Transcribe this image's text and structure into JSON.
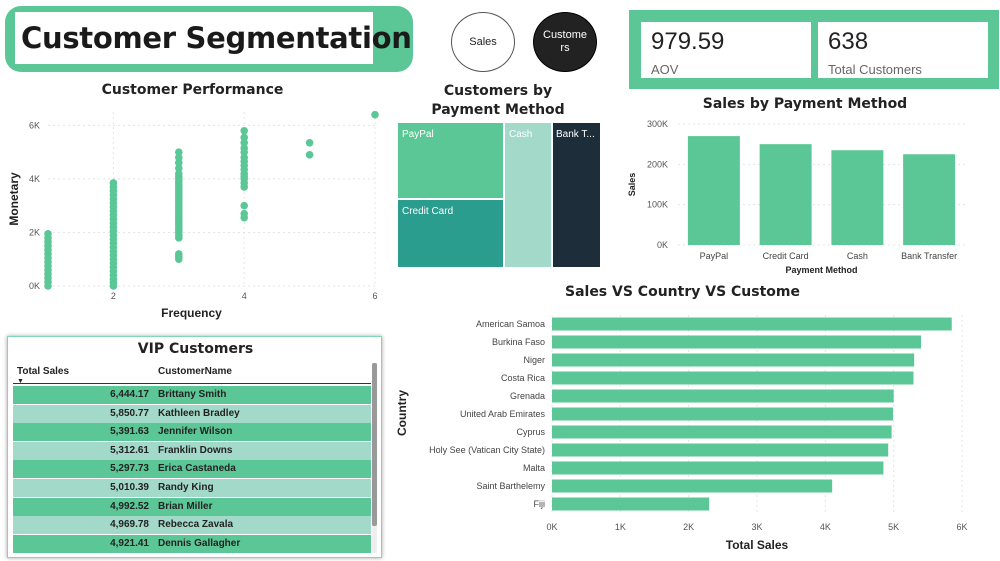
{
  "header": {
    "title": "Customer Segmentation"
  },
  "nav": {
    "sales_label": "Sales",
    "customers_label": "Custome rs"
  },
  "kpis": [
    {
      "value": "979.59",
      "label": "AOV"
    },
    {
      "value": "638",
      "label": "Total Customers"
    }
  ],
  "colors": {
    "accent": "#5cc796",
    "treemap_paypal": "#5cc796",
    "treemap_credit": "#2a9d8f",
    "treemap_cash": "#a3d9c9",
    "treemap_bank": "#1e2d3a"
  },
  "chart_data": [
    {
      "id": "scatter",
      "type": "scatter",
      "title": "Customer Performance",
      "xlabel": "Frequency",
      "ylabel": "Monetary",
      "xlim": [
        1,
        6
      ],
      "ylim": [
        0,
        6500
      ],
      "x_ticks": [
        "2",
        "4",
        "6"
      ],
      "y_ticks": [
        "0K",
        "2K",
        "4K",
        "6K"
      ],
      "grid": true,
      "points": [
        [
          1,
          0
        ],
        [
          1,
          150
        ],
        [
          1,
          300
        ],
        [
          1,
          450
        ],
        [
          1,
          600
        ],
        [
          1,
          750
        ],
        [
          1,
          900
        ],
        [
          1,
          1050
        ],
        [
          1,
          1200
        ],
        [
          1,
          1350
        ],
        [
          1,
          1500
        ],
        [
          1,
          1650
        ],
        [
          1,
          1800
        ],
        [
          1,
          1950
        ],
        [
          2,
          0
        ],
        [
          2,
          120
        ],
        [
          2,
          250
        ],
        [
          2,
          400
        ],
        [
          2,
          550
        ],
        [
          2,
          700
        ],
        [
          2,
          850
        ],
        [
          2,
          1000
        ],
        [
          2,
          1150
        ],
        [
          2,
          1300
        ],
        [
          2,
          1450
        ],
        [
          2,
          1600
        ],
        [
          2,
          1750
        ],
        [
          2,
          1900
        ],
        [
          2,
          2050
        ],
        [
          2,
          2200
        ],
        [
          2,
          2350
        ],
        [
          2,
          2500
        ],
        [
          2,
          2650
        ],
        [
          2,
          2800
        ],
        [
          2,
          2950
        ],
        [
          2,
          3100
        ],
        [
          2,
          3250
        ],
        [
          2,
          3400
        ],
        [
          2,
          3550
        ],
        [
          2,
          3700
        ],
        [
          2,
          3850
        ],
        [
          3,
          1000
        ],
        [
          3,
          1100
        ],
        [
          3,
          1200
        ],
        [
          3,
          1800
        ],
        [
          3,
          1900
        ],
        [
          3,
          2000
        ],
        [
          3,
          2100
        ],
        [
          3,
          2200
        ],
        [
          3,
          2300
        ],
        [
          3,
          2400
        ],
        [
          3,
          2500
        ],
        [
          3,
          2600
        ],
        [
          3,
          2700
        ],
        [
          3,
          2800
        ],
        [
          3,
          2900
        ],
        [
          3,
          3000
        ],
        [
          3,
          3100
        ],
        [
          3,
          3200
        ],
        [
          3,
          3300
        ],
        [
          3,
          3400
        ],
        [
          3,
          3500
        ],
        [
          3,
          3600
        ],
        [
          3,
          3700
        ],
        [
          3,
          3800
        ],
        [
          3,
          3900
        ],
        [
          3,
          4000
        ],
        [
          3,
          4100
        ],
        [
          3,
          4200
        ],
        [
          3,
          4400
        ],
        [
          3,
          4600
        ],
        [
          3,
          4800
        ],
        [
          3,
          5000
        ],
        [
          4,
          2550
        ],
        [
          4,
          2700
        ],
        [
          4,
          3000
        ],
        [
          4,
          3700
        ],
        [
          4,
          3850
        ],
        [
          4,
          4000
        ],
        [
          4,
          4100
        ],
        [
          4,
          4200
        ],
        [
          4,
          4350
        ],
        [
          4,
          4500
        ],
        [
          4,
          4650
        ],
        [
          4,
          4800
        ],
        [
          4,
          5000
        ],
        [
          4,
          5150
        ],
        [
          4,
          5350
        ],
        [
          4,
          5550
        ],
        [
          4,
          5800
        ],
        [
          5,
          4900
        ],
        [
          5,
          5350
        ],
        [
          6,
          6400
        ]
      ]
    },
    {
      "id": "treemap",
      "type": "treemap",
      "title": "Customers by Payment Method",
      "items": [
        {
          "label": "PayPal",
          "value": 180
        },
        {
          "label": "Credit Card",
          "value": 152
        },
        {
          "label": "Cash",
          "value": 160
        },
        {
          "label": "Bank T...",
          "value": 146
        }
      ]
    },
    {
      "id": "paybar",
      "type": "bar",
      "title": "Sales by Payment Method",
      "xlabel": "Payment Method",
      "ylabel": "Sales",
      "categories": [
        "PayPal",
        "Credit Card",
        "Cash",
        "Bank Transfer"
      ],
      "values": [
        270000,
        250000,
        235000,
        225000
      ],
      "ylim": [
        0,
        300000
      ],
      "y_ticks": [
        "0K",
        "100K",
        "200K",
        "300K"
      ]
    },
    {
      "id": "countrybar",
      "type": "bar",
      "orientation": "horizontal",
      "title": "Sales VS Country VS Custome",
      "xlabel": "Total Sales",
      "ylabel": "Country",
      "categories": [
        "American Samoa",
        "Burkina Faso",
        "Niger",
        "Costa Rica",
        "Grenada",
        "United Arab Emirates",
        "Cyprus",
        "Holy See (Vatican City State)",
        "Malta",
        "Saint Barthelemy",
        "Fiji"
      ],
      "values": [
        5850,
        5400,
        5300,
        5290,
        5000,
        4990,
        4970,
        4920,
        4850,
        4100,
        2300
      ],
      "xlim": [
        0,
        6000
      ],
      "x_ticks": [
        "0K",
        "1K",
        "2K",
        "3K",
        "4K",
        "5K",
        "6K"
      ]
    }
  ],
  "vip": {
    "title": "VIP Customers",
    "col_sales": "Total Sales",
    "col_name": "CustomerName",
    "rows": [
      {
        "sales": "6,444.17",
        "name": "Brittany Smith"
      },
      {
        "sales": "5,850.77",
        "name": "Kathleen Bradley"
      },
      {
        "sales": "5,391.63",
        "name": "Jennifer Wilson"
      },
      {
        "sales": "5,312.61",
        "name": "Franklin Downs"
      },
      {
        "sales": "5,297.73",
        "name": "Erica Castaneda"
      },
      {
        "sales": "5,010.39",
        "name": "Randy King"
      },
      {
        "sales": "4,992.52",
        "name": "Brian Miller"
      },
      {
        "sales": "4,969.78",
        "name": "Rebecca Zavala"
      },
      {
        "sales": "4,921.41",
        "name": "Dennis Gallagher"
      }
    ]
  }
}
